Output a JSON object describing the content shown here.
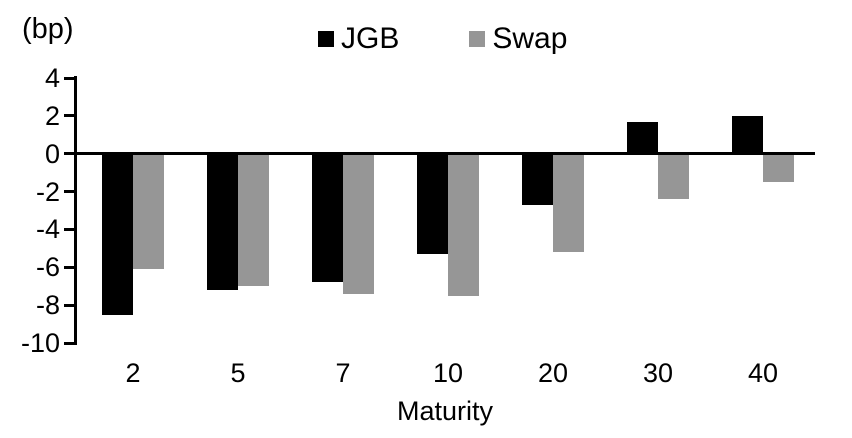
{
  "chart_data": {
    "type": "bar",
    "title": "",
    "unit_label": "(bp)",
    "xlabel": "Maturity",
    "categories": [
      "2",
      "5",
      "7",
      "10",
      "20",
      "30",
      "40"
    ],
    "series": [
      {
        "name": "JGB",
        "color": "#000000",
        "values": [
          -8.5,
          -7.2,
          -6.8,
          -5.3,
          -2.7,
          1.7,
          2.0
        ]
      },
      {
        "name": "Swap",
        "color": "#969696",
        "values": [
          -6.1,
          -7.0,
          -7.4,
          -7.5,
          -5.2,
          -2.4,
          -1.5
        ]
      }
    ],
    "ylim": [
      -10,
      4
    ],
    "yticks": [
      4,
      2,
      0,
      -2,
      -4,
      -6,
      -8,
      -10
    ],
    "legend_position": "top-center",
    "grid": false,
    "axis_color": "#000000"
  }
}
